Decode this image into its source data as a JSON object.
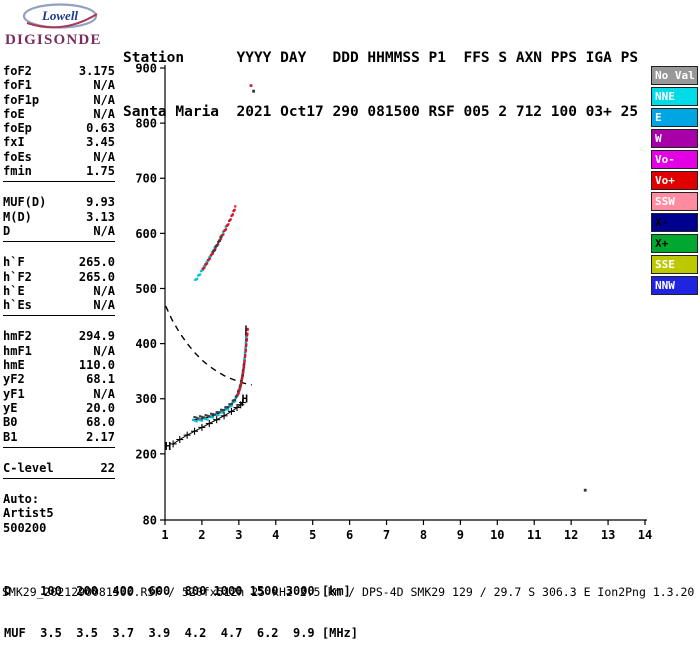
{
  "logo": {
    "name": "Lowell",
    "product": "DIGISONDE"
  },
  "header": {
    "line1": "Station      YYYY DAY   DDD HHMMSS P1  FFS S AXN PPS IGA PS",
    "line2": "Santa Maria  2021 Oct17 290 081500 RSF 005 2 712 100 03+ 25"
  },
  "readouts": {
    "groups": [
      {
        "rows": [
          [
            "foF2",
            "3.175"
          ],
          [
            "foF1",
            "N/A"
          ],
          [
            "foF1p",
            "N/A"
          ],
          [
            "foE",
            "N/A"
          ],
          [
            "foEp",
            "0.63"
          ],
          [
            "fxI",
            "3.45"
          ],
          [
            "foEs",
            "N/A"
          ],
          [
            "fmin",
            "1.75"
          ]
        ]
      },
      {
        "rows": [
          [
            "MUF(D)",
            "9.93"
          ],
          [
            "M(D)",
            "3.13"
          ],
          [
            "D",
            "N/A"
          ]
        ]
      },
      {
        "rows": [
          [
            "h`F",
            "265.0"
          ],
          [
            "h`F2",
            "265.0"
          ],
          [
            "h`E",
            "N/A"
          ],
          [
            "h`Es",
            "N/A"
          ]
        ]
      },
      {
        "rows": [
          [
            "hmF2",
            "294.9"
          ],
          [
            "hmF1",
            "N/A"
          ],
          [
            "hmE",
            "110.0"
          ],
          [
            "yF2",
            "68.1"
          ],
          [
            "yF1",
            "N/A"
          ],
          [
            "yE",
            "20.0"
          ],
          [
            "B0",
            "68.0"
          ],
          [
            "B1",
            "2.17"
          ]
        ]
      },
      {
        "rows": [
          [
            "C-level",
            "22"
          ]
        ]
      }
    ],
    "footer": [
      "Auto:",
      "Artist5",
      "500200"
    ]
  },
  "legend": [
    {
      "label": "No Val",
      "bg": "#989898",
      "fg": "#ffffff"
    },
    {
      "label": "NNE",
      "bg": "#00dbe8",
      "fg": "#ffffff"
    },
    {
      "label": "E",
      "bg": "#00a6e2",
      "fg": "#ffffff"
    },
    {
      "label": "W",
      "bg": "#a800a8",
      "fg": "#ffffff"
    },
    {
      "label": "Vo-",
      "bg": "#e400e4",
      "fg": "#ffffff"
    },
    {
      "label": "Vo+",
      "bg": "#e00000",
      "fg": "#ffffff"
    },
    {
      "label": "SSW",
      "bg": "#ff8c9e",
      "fg": "#ffffff"
    },
    {
      "label": "X-",
      "bg": "#000090",
      "fg": "#000000"
    },
    {
      "label": "X+",
      "bg": "#00a830",
      "fg": "#000000"
    },
    {
      "label": "SSE",
      "bg": "#bcc800",
      "fg": "#ffffff"
    },
    {
      "label": "NNW",
      "bg": "#2024e0",
      "fg": "#ffffff"
    }
  ],
  "chart_data": {
    "type": "scatter",
    "title": "",
    "xlabel": "",
    "ylabel": "",
    "x_axis": {
      "min": 1,
      "max": 14,
      "ticks": [
        1,
        2,
        3,
        4,
        5,
        6,
        7,
        8,
        9,
        10,
        11,
        12,
        13,
        14
      ],
      "unit": "MHz"
    },
    "y_axis": {
      "min": 80,
      "max": 900,
      "ticks": [
        900,
        800,
        700,
        600,
        500,
        400,
        300,
        200,
        80
      ],
      "unit": "km"
    },
    "grid": false,
    "legend_position": "right",
    "series": [
      {
        "name": "muf-transmission-curve",
        "type": "dashed",
        "color": "#000000",
        "points": [
          [
            1.02,
            468
          ],
          [
            1.2,
            442
          ],
          [
            1.4,
            419
          ],
          [
            1.6,
            400
          ],
          [
            1.8,
            384
          ],
          [
            2.0,
            370
          ],
          [
            2.2,
            359
          ],
          [
            2.4,
            350
          ],
          [
            2.6,
            342
          ],
          [
            2.8,
            336
          ],
          [
            3.0,
            331
          ],
          [
            3.2,
            327
          ],
          [
            3.35,
            325
          ]
        ]
      },
      {
        "name": "o-trace-fit",
        "type": "line",
        "color": "#000000",
        "points": [
          [
            1.75,
            262
          ],
          [
            1.9,
            262
          ],
          [
            2.1,
            265
          ],
          [
            2.3,
            269
          ],
          [
            2.5,
            275
          ],
          [
            2.7,
            283
          ],
          [
            2.85,
            293
          ],
          [
            2.95,
            304
          ],
          [
            3.05,
            320
          ],
          [
            3.12,
            343
          ],
          [
            3.16,
            370
          ],
          [
            3.185,
            400
          ],
          [
            3.195,
            433
          ]
        ]
      },
      {
        "name": "f-trace-echoes-cyan",
        "type": "dots",
        "color": "#00c2d4",
        "points": [
          [
            1.76,
            260
          ],
          [
            1.95,
            261
          ],
          [
            2.15,
            264
          ],
          [
            2.35,
            269
          ],
          [
            2.55,
            275
          ],
          [
            2.75,
            284
          ],
          [
            2.9,
            297
          ],
          [
            3.0,
            313
          ],
          [
            3.08,
            335
          ],
          [
            3.14,
            362
          ],
          [
            3.18,
            392
          ],
          [
            3.21,
            418
          ]
        ]
      },
      {
        "name": "f-trace-echoes-dark",
        "type": "dots",
        "color": "#3c3c44",
        "points": [
          [
            1.8,
            265
          ],
          [
            2.0,
            267
          ],
          [
            2.2,
            270
          ],
          [
            2.4,
            274
          ],
          [
            2.6,
            281
          ],
          [
            2.78,
            290
          ],
          [
            2.92,
            302
          ],
          [
            3.02,
            318
          ],
          [
            3.1,
            342
          ],
          [
            3.15,
            368
          ]
        ]
      },
      {
        "name": "x-trace-echoes-red",
        "type": "dots",
        "color": "#d41428",
        "points": [
          [
            2.97,
            306
          ],
          [
            3.06,
            327
          ],
          [
            3.13,
            354
          ],
          [
            3.18,
            384
          ],
          [
            3.22,
            410
          ],
          [
            3.245,
            430
          ]
        ]
      },
      {
        "name": "second-hop-cyan",
        "type": "dots",
        "color": "#00c2d4",
        "points": [
          [
            1.82,
            514
          ],
          [
            1.95,
            527
          ],
          [
            2.08,
            541
          ],
          [
            2.2,
            555
          ],
          [
            2.32,
            570
          ],
          [
            2.42,
            582
          ]
        ]
      },
      {
        "name": "second-hop-cyan-upper",
        "type": "dots",
        "color": "#00c2d4",
        "points": [
          [
            2.5,
            592
          ],
          [
            2.62,
            607
          ],
          [
            2.72,
            620
          ]
        ]
      },
      {
        "name": "second-hop-red",
        "type": "dots",
        "color": "#d41428",
        "points": [
          [
            2.02,
            534
          ],
          [
            2.14,
            547
          ],
          [
            2.27,
            562
          ],
          [
            2.39,
            576
          ],
          [
            2.51,
            591
          ],
          [
            2.63,
            606
          ],
          [
            2.74,
            621
          ],
          [
            2.84,
            636
          ],
          [
            2.92,
            650
          ]
        ]
      },
      {
        "name": "second-hop-dark",
        "type": "dots",
        "color": "#3c3c44",
        "points": [
          [
            2.3,
            565
          ],
          [
            2.42,
            580
          ],
          [
            2.55,
            596
          ]
        ]
      },
      {
        "name": "true-height-profile",
        "type": "plus-line",
        "color": "#000000",
        "points": [
          [
            1.22,
            218
          ],
          [
            1.4,
            226
          ],
          [
            1.6,
            234
          ],
          [
            1.8,
            241
          ],
          [
            2.0,
            248
          ],
          [
            2.2,
            255
          ],
          [
            2.4,
            262
          ],
          [
            2.6,
            269
          ],
          [
            2.8,
            277
          ],
          [
            2.95,
            284
          ],
          [
            3.05,
            289
          ],
          [
            3.1,
            293
          ]
        ]
      },
      {
        "name": "stray-echo-red",
        "type": "points",
        "color": "#b8303c",
        "points": [
          [
            3.33,
            868
          ]
        ]
      },
      {
        "name": "stray-echoes-dark",
        "type": "points",
        "color": "#34343c",
        "points": [
          [
            3.4,
            858
          ],
          [
            12.38,
            134
          ]
        ]
      }
    ],
    "annotations": [
      {
        "text": "H",
        "x": 1.08,
        "y": 214
      },
      {
        "text": "H",
        "x": 3.16,
        "y": 300
      }
    ]
  },
  "footer": {
    "d_line": "D    100  200  400  600  800 1000 1500 3000 [km]",
    "muf_line": "MUF  3.5  3.5  3.7  3.9  4.2  4.7  6.2  9.9 [MHz]",
    "file_line": "SMK29_2021290081500.RSF / 520fx512h 25 kHz 2.5 km / DPS-4D SMK29 129 / 29.7 S 306.3 E Ion2Png 1.3.20"
  }
}
